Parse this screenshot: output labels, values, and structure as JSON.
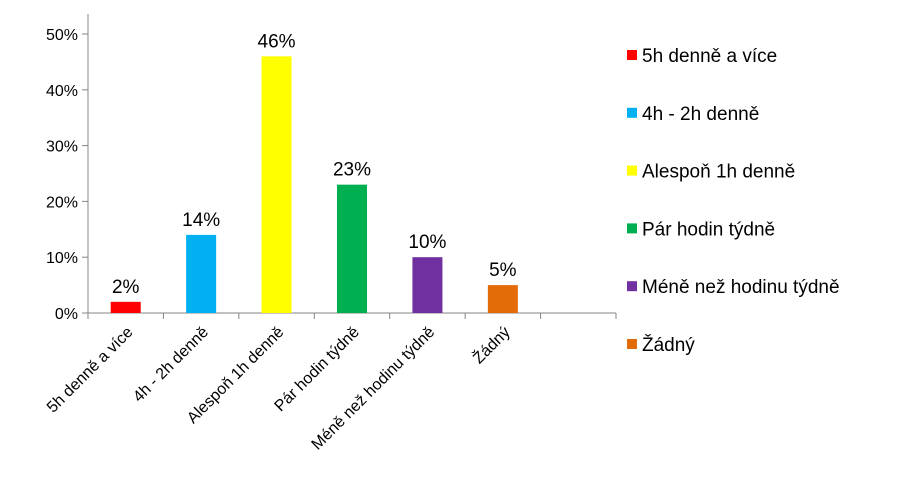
{
  "chart_data": {
    "type": "bar",
    "title": "",
    "xlabel": "",
    "ylabel": "",
    "ylim": [
      0,
      0.5
    ],
    "yticks": [
      "0%",
      "10%",
      "20%",
      "30%",
      "40%",
      "50%"
    ],
    "categories": [
      "5h denně a více",
      "4h - 2h denně",
      "Alespoň 1h denně",
      "Pár hodin týdně",
      "Méně než hodinu týdně",
      "Žádný"
    ],
    "values": [
      0.02,
      0.14,
      0.46,
      0.23,
      0.1,
      0.05
    ],
    "data_labels": [
      "2%",
      "14%",
      "46%",
      "23%",
      "10%",
      "5%"
    ],
    "colors": [
      "#ff0000",
      "#00b0f0",
      "#ffff00",
      "#00b050",
      "#7030a0",
      "#e36c09"
    ],
    "grid": false,
    "legend": {
      "position": "right",
      "entries": [
        "5h denně a více",
        "4h - 2h denně",
        "Alespoň 1h denně",
        "Pár hodin týdně",
        "Méně než hodinu týdně",
        "Žádný"
      ]
    }
  }
}
